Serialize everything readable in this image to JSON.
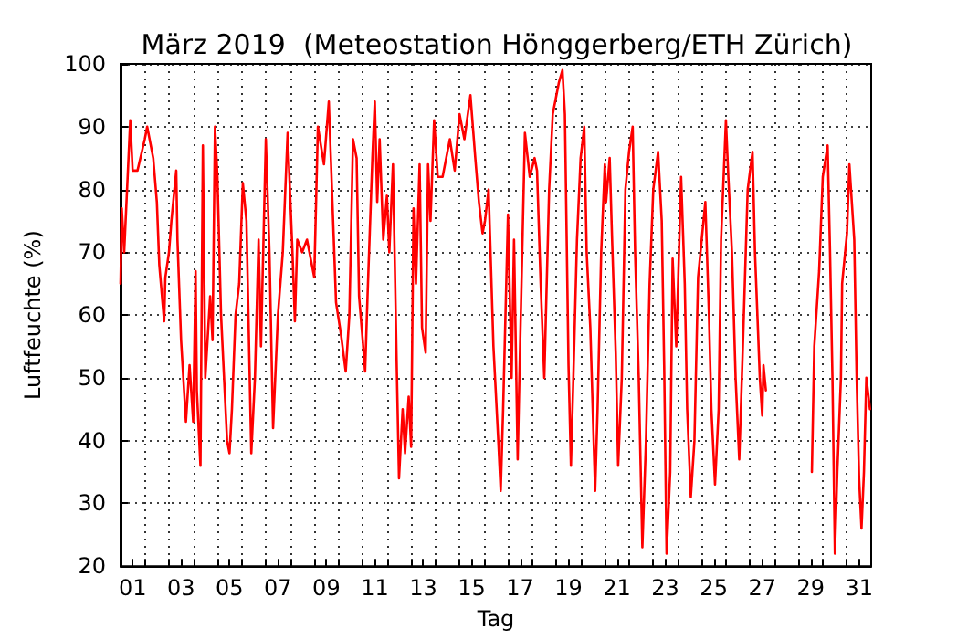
{
  "chart_data": {
    "type": "line",
    "title": "März 2019  (Meteostation Hönggerberg/ETH Zürich)",
    "xlabel": "Tag",
    "ylabel": "Luftfeuchte (%)",
    "grid": true,
    "marker": "none",
    "line_style": "solid",
    "xlim": [
      0,
      31
    ],
    "ylim": [
      20,
      100
    ],
    "yticks": [
      20,
      30,
      40,
      50,
      60,
      70,
      80,
      90,
      100
    ],
    "xticks": [
      {
        "value": 0.5,
        "label": "01"
      },
      {
        "value": 1,
        "label": null
      },
      {
        "value": 2,
        "label": null
      },
      {
        "value": 2.5,
        "label": "03"
      },
      {
        "value": 3,
        "label": null
      },
      {
        "value": 4,
        "label": null
      },
      {
        "value": 4.5,
        "label": "05"
      },
      {
        "value": 5,
        "label": null
      },
      {
        "value": 6,
        "label": null
      },
      {
        "value": 6.5,
        "label": "07"
      },
      {
        "value": 7,
        "label": null
      },
      {
        "value": 8,
        "label": null
      },
      {
        "value": 8.5,
        "label": "09"
      },
      {
        "value": 9,
        "label": null
      },
      {
        "value": 10,
        "label": null
      },
      {
        "value": 10.5,
        "label": "11"
      },
      {
        "value": 11,
        "label": null
      },
      {
        "value": 12,
        "label": null
      },
      {
        "value": 12.5,
        "label": "13"
      },
      {
        "value": 13,
        "label": null
      },
      {
        "value": 14,
        "label": null
      },
      {
        "value": 14.5,
        "label": "15"
      },
      {
        "value": 15,
        "label": null
      },
      {
        "value": 16,
        "label": null
      },
      {
        "value": 16.5,
        "label": "17"
      },
      {
        "value": 17,
        "label": null
      },
      {
        "value": 18,
        "label": null
      },
      {
        "value": 18.5,
        "label": "19"
      },
      {
        "value": 19,
        "label": null
      },
      {
        "value": 20,
        "label": null
      },
      {
        "value": 20.5,
        "label": "21"
      },
      {
        "value": 21,
        "label": null
      },
      {
        "value": 22,
        "label": null
      },
      {
        "value": 22.5,
        "label": "23"
      },
      {
        "value": 23,
        "label": null
      },
      {
        "value": 24,
        "label": null
      },
      {
        "value": 24.5,
        "label": "25"
      },
      {
        "value": 25,
        "label": null
      },
      {
        "value": 26,
        "label": null
      },
      {
        "value": 26.5,
        "label": "27"
      },
      {
        "value": 27,
        "label": null
      },
      {
        "value": 28,
        "label": null
      },
      {
        "value": 28.5,
        "label": "29"
      },
      {
        "value": 29,
        "label": null
      },
      {
        "value": 30,
        "label": null
      },
      {
        "value": 30.5,
        "label": "31"
      }
    ],
    "series": [
      {
        "color": "#ff0000",
        "x": [
          0,
          0.05,
          0.15,
          0.4,
          0.5,
          0.7,
          1,
          1.1,
          1.35,
          1.5,
          1.6,
          1.8,
          1.85,
          2,
          2.1,
          2.3,
          2.35,
          2.5,
          2.7,
          2.85,
          3,
          3.1,
          3.15,
          3.3,
          3.4,
          3.5,
          3.7,
          3.8,
          3.9,
          4,
          4.15,
          4.4,
          4.5,
          4.6,
          4.75,
          4.9,
          5.05,
          5.2,
          5.4,
          5.55,
          5.7,
          5.8,
          6,
          6.15,
          6.3,
          6.5,
          6.7,
          6.9,
          7.1,
          7.2,
          7.3,
          7.5,
          7.7,
          8,
          8.15,
          8.4,
          8.6,
          8.75,
          8.9,
          9.1,
          9.3,
          9.45,
          9.6,
          9.75,
          9.85,
          10,
          10.1,
          10.2,
          10.4,
          10.5,
          10.6,
          10.7,
          10.85,
          11,
          11.1,
          11.25,
          11.4,
          11.5,
          11.65,
          11.75,
          11.9,
          12,
          12.1,
          12.2,
          12.35,
          12.45,
          12.6,
          12.7,
          12.8,
          12.95,
          13.1,
          13.3,
          13.6,
          13.8,
          14,
          14.2,
          14.45,
          14.65,
          14.8,
          14.95,
          15.05,
          15.2,
          15.4,
          15.6,
          15.7,
          15.8,
          16,
          16.15,
          16.25,
          16.4,
          16.5,
          16.7,
          16.9,
          17.1,
          17.2,
          17.35,
          17.5,
          17.7,
          17.85,
          18.1,
          18.25,
          18.35,
          18.5,
          18.6,
          18.7,
          18.85,
          19,
          19.15,
          19.25,
          19.4,
          19.6,
          19.7,
          19.85,
          20,
          20.05,
          20.2,
          20.3,
          20.45,
          20.55,
          20.7,
          20.85,
          21,
          21.15,
          21.25,
          21.4,
          21.55,
          21.7,
          21.85,
          22,
          22.2,
          22.35,
          22.45,
          22.55,
          22.7,
          22.8,
          22.95,
          23.15,
          23.3,
          23.4,
          23.55,
          23.7,
          23.85,
          24,
          24.15,
          24.3,
          24.4,
          24.55,
          24.7,
          24.8,
          25,
          25.1,
          25.25,
          25.4,
          25.55,
          25.7,
          25.9,
          26.1,
          26.2,
          26.4,
          26.5,
          26.55,
          26.65,
          27.5,
          28.55,
          28.65,
          28.85,
          29,
          29.2,
          29.3,
          29.4,
          29.5,
          29.6,
          29.75,
          29.8,
          30,
          30.1,
          30.3,
          30.4,
          30.5,
          30.6,
          30.7,
          30.8,
          30.95
        ],
        "values": [
          65,
          77,
          70,
          91,
          83,
          83,
          88,
          90,
          85,
          78,
          68,
          59,
          66,
          70,
          75,
          83,
          72,
          56,
          43,
          52,
          43,
          67,
          48,
          36,
          87,
          50,
          63,
          56,
          90,
          82,
          60,
          40,
          38,
          45,
          60,
          65,
          81,
          75,
          38,
          50,
          72,
          55,
          88,
          70,
          42,
          60,
          70,
          89,
          70,
          59,
          72,
          70,
          72,
          66,
          90,
          84,
          94,
          78,
          62,
          57,
          51,
          60,
          88,
          85,
          63,
          56,
          51,
          63,
          85,
          94,
          78,
          88,
          72,
          79,
          70,
          84,
          53,
          34,
          45,
          38,
          47,
          39,
          77,
          65,
          84,
          58,
          54,
          84,
          75,
          91,
          82,
          82,
          88,
          83,
          92,
          88,
          95,
          85,
          78,
          73,
          75,
          80,
          55,
          40,
          32,
          45,
          76,
          50,
          72,
          37,
          55,
          89,
          82,
          85,
          83,
          65,
          50,
          80,
          92,
          97,
          99,
          92,
          52,
          36,
          50,
          72,
          85,
          90,
          70,
          58,
          32,
          45,
          70,
          84,
          78,
          85,
          72,
          54,
          36,
          50,
          80,
          86,
          90,
          70,
          50,
          23,
          40,
          65,
          80,
          86,
          75,
          52,
          22,
          35,
          69,
          55,
          82,
          65,
          45,
          31,
          40,
          66,
          72,
          78,
          60,
          45,
          33,
          45,
          72,
          91,
          82,
          70,
          50,
          37,
          55,
          80,
          86,
          70,
          50,
          44,
          52,
          48,
          null,
          35,
          55,
          67,
          82,
          87,
          70,
          50,
          22,
          35,
          50,
          65,
          73,
          84,
          72,
          50,
          34,
          26,
          35,
          50,
          45
        ]
      }
    ]
  }
}
